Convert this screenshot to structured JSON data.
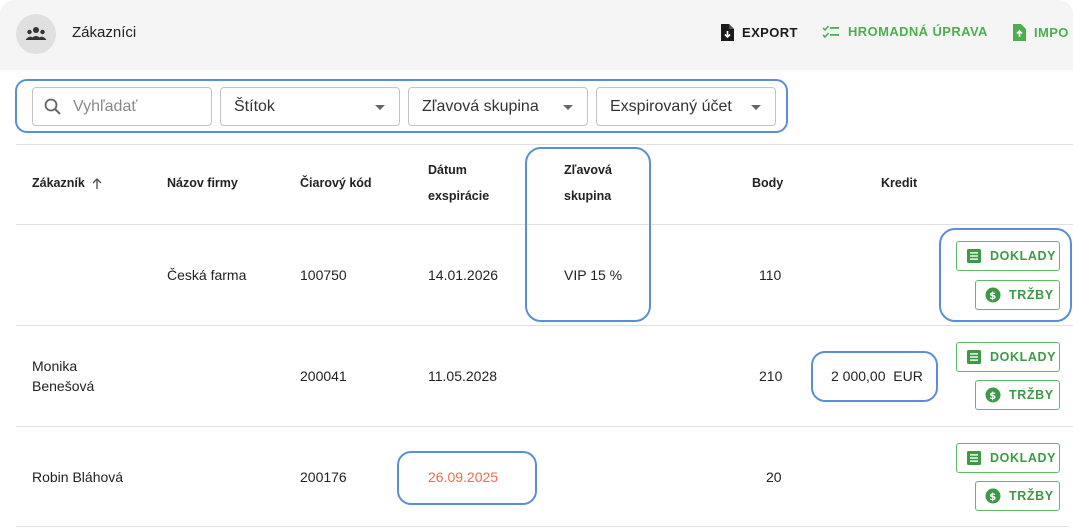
{
  "header": {
    "title": "Zákazníci",
    "export_label": "EXPORT",
    "bulk_edit_label": "HROMADNÁ ÚPRAVA",
    "import_label": "IMPO"
  },
  "filters": {
    "search_placeholder": "Vyhľadať",
    "tag_label": "Štítok",
    "discount_group_label": "Zľavová skupina",
    "expired_label": "Exspirovaný účet"
  },
  "table": {
    "columns": {
      "customer": "Zákazník",
      "company": "Názov firmy",
      "barcode": "Čiarový kód",
      "expiry_line1": "Dátum",
      "expiry_line2": "exspirácie",
      "group_line1": "Zľavová",
      "group_line2": "skupina",
      "points": "Body",
      "credit": "Kredit"
    },
    "rows": [
      {
        "customer": "",
        "company": "Česká farma",
        "barcode": "100750",
        "expiry": "14.01.2026",
        "group": "VIP 15 %",
        "points": "110",
        "credit": ""
      },
      {
        "customer_line1": "Monika",
        "customer_line2": "Benešová",
        "company": "",
        "barcode": "200041",
        "expiry": "11.05.2028",
        "group": "",
        "points": "210",
        "credit": "2 000,00  EUR"
      },
      {
        "customer": "Robin Bláhová",
        "company": "",
        "barcode": "200176",
        "expiry": "26.09.2025",
        "group": "",
        "points": "20",
        "credit": ""
      }
    ],
    "actions": {
      "documents_label": "DOKLADY",
      "sales_label": "TRŽBY"
    }
  },
  "colors": {
    "accent_green": "#4caf50",
    "highlight_blue": "#5a8ed8",
    "expired_red": "#f26b4f"
  },
  "icons": {
    "header": "people-group-icon",
    "export": "file-download-icon",
    "bulk_edit": "checklist-icon",
    "import": "file-upload-icon",
    "search": "search-icon",
    "sort": "arrow-up-icon",
    "documents": "receipt-list-icon",
    "sales": "dollar-circle-icon"
  }
}
